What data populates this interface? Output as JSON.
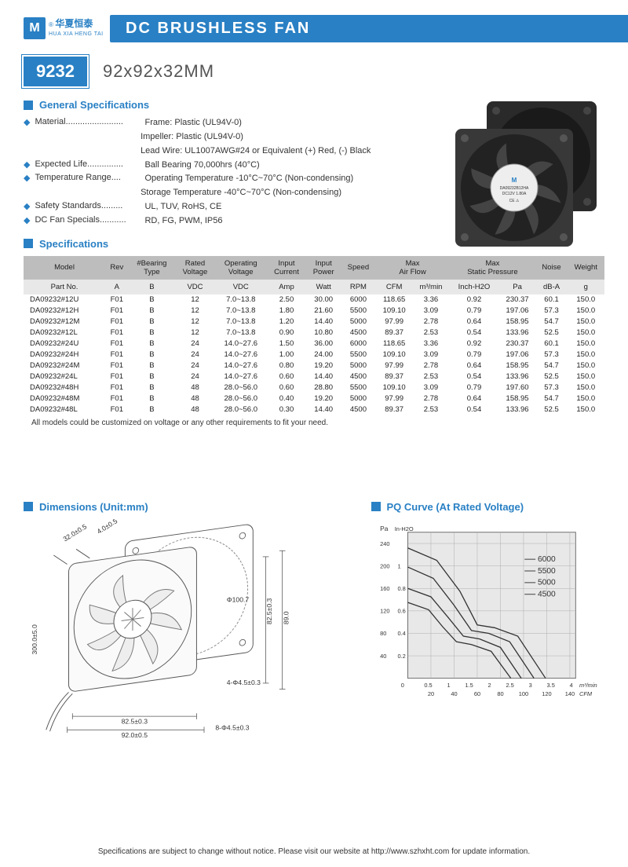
{
  "brand": {
    "logo_letter": "M",
    "name_cn": "华夏恒泰",
    "name_en": "HUA XIA HENG TAI",
    "reg": "®"
  },
  "page_title": "DC BRUSHLESS FAN",
  "model_code": "9232",
  "dimensions_text": "92x92x32MM",
  "sections": {
    "general": "General Specifications",
    "specs": "Specifications",
    "dims": "Dimensions (Unit:mm)",
    "pq": "PQ Curve (At Rated Voltage)"
  },
  "general_specs": [
    {
      "label": "Material........................",
      "value": "Frame: Plastic (UL94V-0)\nImpeller: Plastic (UL94V-0)\nLead Wire: UL1007AWG#24 or Equivalent (+) Red, (-) Black"
    },
    {
      "label": "Expected Life...............",
      "value": "Ball Bearing 70,000hrs (40°C)"
    },
    {
      "label": "Temperature Range....",
      "value": "Operating Temperature -10°C~70°C (Non-condensing)\nStorage Temperature -40°C~70°C (Non-condensing)"
    },
    {
      "label": "Safety Standards.........",
      "value": "UL, TUV, RoHS, CE"
    },
    {
      "label": "DC Fan Specials...........",
      "value": "RD, FG, PWM, IP56"
    }
  ],
  "spec_headers_top": [
    "Model",
    "Rev",
    "#Bearing Type",
    "Rated Voltage",
    "Operating Voltage",
    "Input Current",
    "Input Power",
    "Speed",
    "Max Air Flow",
    "",
    "Max Static Pressure",
    "",
    "Noise",
    "Weight"
  ],
  "spec_headers_sub": [
    "Part No.",
    "A",
    "B",
    "VDC",
    "VDC",
    "Amp",
    "Watt",
    "RPM",
    "CFM",
    "m³/min",
    "Inch-H2O",
    "Pa",
    "dB-A",
    "g"
  ],
  "spec_rows": [
    [
      "DA09232#12U",
      "F01",
      "B",
      "12",
      "7.0~13.8",
      "2.50",
      "30.00",
      "6000",
      "118.65",
      "3.36",
      "0.92",
      "230.37",
      "60.1",
      "150.0"
    ],
    [
      "DA09232#12H",
      "F01",
      "B",
      "12",
      "7.0~13.8",
      "1.80",
      "21.60",
      "5500",
      "109.10",
      "3.09",
      "0.79",
      "197.06",
      "57.3",
      "150.0"
    ],
    [
      "DA09232#12M",
      "F01",
      "B",
      "12",
      "7.0~13.8",
      "1.20",
      "14.40",
      "5000",
      "97.99",
      "2.78",
      "0.64",
      "158.95",
      "54.7",
      "150.0"
    ],
    [
      "DA09232#12L",
      "F01",
      "B",
      "12",
      "7.0~13.8",
      "0.90",
      "10.80",
      "4500",
      "89.37",
      "2.53",
      "0.54",
      "133.96",
      "52.5",
      "150.0"
    ],
    [
      "DA09232#24U",
      "F01",
      "B",
      "24",
      "14.0~27.6",
      "1.50",
      "36.00",
      "6000",
      "118.65",
      "3.36",
      "0.92",
      "230.37",
      "60.1",
      "150.0"
    ],
    [
      "DA09232#24H",
      "F01",
      "B",
      "24",
      "14.0~27.6",
      "1.00",
      "24.00",
      "5500",
      "109.10",
      "3.09",
      "0.79",
      "197.06",
      "57.3",
      "150.0"
    ],
    [
      "DA09232#24M",
      "F01",
      "B",
      "24",
      "14.0~27.6",
      "0.80",
      "19.20",
      "5000",
      "97.99",
      "2.78",
      "0.64",
      "158.95",
      "54.7",
      "150.0"
    ],
    [
      "DA09232#24L",
      "F01",
      "B",
      "24",
      "14.0~27.6",
      "0.60",
      "14.40",
      "4500",
      "89.37",
      "2.53",
      "0.54",
      "133.96",
      "52.5",
      "150.0"
    ],
    [
      "DA09232#48H",
      "F01",
      "B",
      "48",
      "28.0~56.0",
      "0.60",
      "28.80",
      "5500",
      "109.10",
      "3.09",
      "0.79",
      "197.60",
      "57.3",
      "150.0"
    ],
    [
      "DA09232#48M",
      "F01",
      "B",
      "48",
      "28.0~56.0",
      "0.40",
      "19.20",
      "5000",
      "97.99",
      "2.78",
      "0.64",
      "158.95",
      "54.7",
      "150.0"
    ],
    [
      "DA09232#48L",
      "F01",
      "B",
      "48",
      "28.0~56.0",
      "0.30",
      "14.40",
      "4500",
      "89.37",
      "2.53",
      "0.54",
      "133.96",
      "52.5",
      "150.0"
    ]
  ],
  "table_note": "All models could be customized on voltage or any other requirements to fit your need.",
  "dimensions_drawing": {
    "labels": {
      "depth": "32.0±0.5",
      "chamfer": "4.0±0.5",
      "wire": "300.0±5.0",
      "bolt_circle": "Φ100.7",
      "height_inner": "82.5±0.3",
      "height_outer": "89.0",
      "holes4": "4-Φ4.5±0.3",
      "width_inner": "82.5±0.3",
      "width_outer": "92.0±0.5",
      "holes8": "8-Φ4.5±0.3"
    },
    "line_color": "#555555",
    "text_color": "#333333"
  },
  "pq_curve": {
    "background": "#e8e8e8",
    "grid_color": "#aaaaaa",
    "line_color": "#333333",
    "axis_labels": {
      "y1": "Pa",
      "y2": "In-H2O",
      "x1": "m³/min",
      "x2": "CFM"
    },
    "y1_ticks": [
      40,
      80,
      120,
      160,
      200,
      240
    ],
    "y2_ticks": [
      0.2,
      0.4,
      0.6,
      0.8,
      1.0
    ],
    "x1_ticks": [
      0.5,
      1.0,
      1.5,
      2.0,
      2.5,
      3.0,
      3.5,
      4.0
    ],
    "x2_ticks": [
      20,
      40,
      60,
      80,
      100,
      120,
      140
    ],
    "curves": [
      {
        "label": "6000",
        "points": [
          [
            0,
            232
          ],
          [
            25,
            210
          ],
          [
            45,
            155
          ],
          [
            60,
            95
          ],
          [
            75,
            90
          ],
          [
            95,
            75
          ],
          [
            119,
            0
          ]
        ]
      },
      {
        "label": "5500",
        "points": [
          [
            0,
            198
          ],
          [
            22,
            178
          ],
          [
            40,
            130
          ],
          [
            55,
            85
          ],
          [
            70,
            80
          ],
          [
            88,
            65
          ],
          [
            109,
            0
          ]
        ]
      },
      {
        "label": "5000",
        "points": [
          [
            0,
            160
          ],
          [
            20,
            145
          ],
          [
            35,
            108
          ],
          [
            48,
            75
          ],
          [
            62,
            70
          ],
          [
            80,
            55
          ],
          [
            98,
            0
          ]
        ]
      },
      {
        "label": "4500",
        "points": [
          [
            0,
            135
          ],
          [
            18,
            122
          ],
          [
            30,
            92
          ],
          [
            42,
            65
          ],
          [
            55,
            60
          ],
          [
            72,
            48
          ],
          [
            89,
            0
          ]
        ]
      }
    ]
  },
  "footer_text": "Specifications are subject to change without notice. Please visit our website at http://www.szhxht.com for update information.",
  "colors": {
    "brand": "#2980c4",
    "header_gray": "#bdbdbd",
    "subheader_gray": "#e8e8e8"
  }
}
